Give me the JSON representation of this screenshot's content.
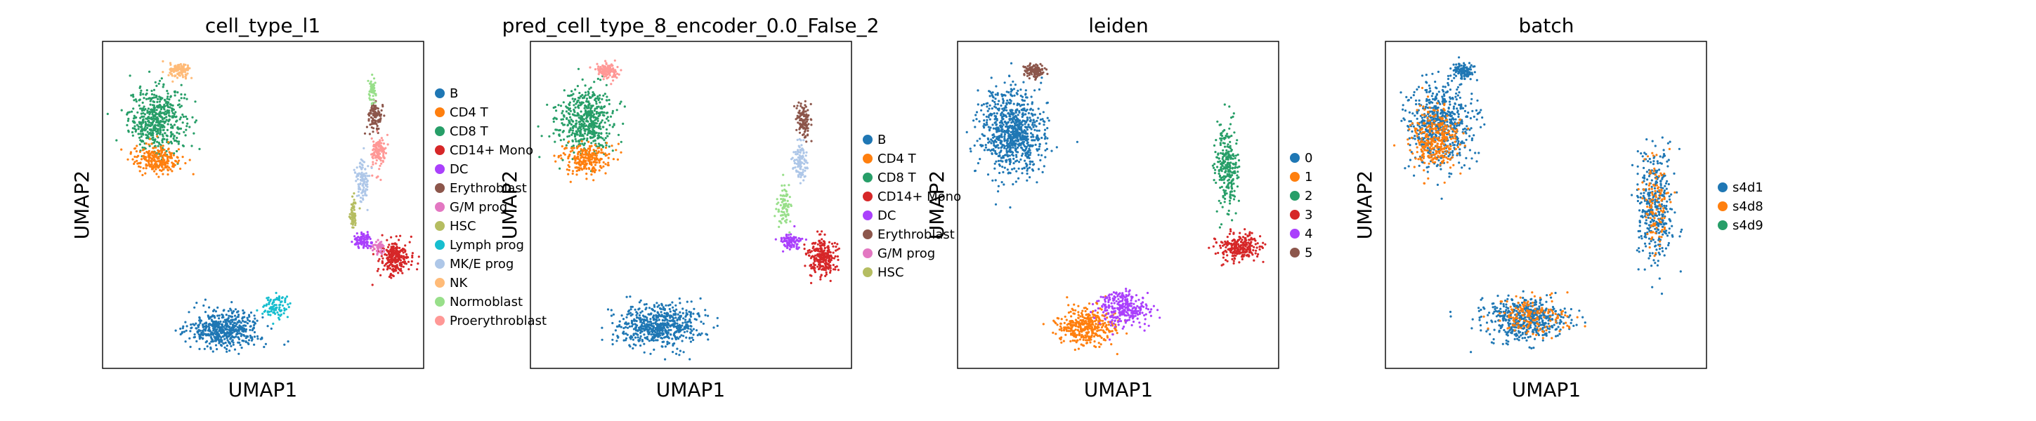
{
  "figure": {
    "panels": [
      {
        "title": "cell_type_l1",
        "xlabel": "UMAP1",
        "ylabel": "UMAP2",
        "legend": [
          {
            "label": "B",
            "color": "#1f77b4"
          },
          {
            "label": "CD4 T",
            "color": "#ff7f0e"
          },
          {
            "label": "CD8 T",
            "color": "#279e68"
          },
          {
            "label": "CD14+ Mono",
            "color": "#d62728"
          },
          {
            "label": "DC",
            "color": "#aa40fc"
          },
          {
            "label": "Erythroblast",
            "color": "#8c564b"
          },
          {
            "label": "G/M prog",
            "color": "#e377c2"
          },
          {
            "label": "HSC",
            "color": "#b5bd61"
          },
          {
            "label": "Lymph prog",
            "color": "#17becf"
          },
          {
            "label": "MK/E prog",
            "color": "#aec7e8"
          },
          {
            "label": "NK",
            "color": "#ffbb78"
          },
          {
            "label": "Normoblast",
            "color": "#98df8a"
          },
          {
            "label": "Proerythroblast",
            "color": "#ff9896"
          }
        ]
      },
      {
        "title": "pred_cell_type_8_encoder_0.0_False_2",
        "xlabel": "UMAP1",
        "ylabel": "UMAP2",
        "legend": [
          {
            "label": "B",
            "color": "#1f77b4"
          },
          {
            "label": "CD4 T",
            "color": "#ff7f0e"
          },
          {
            "label": "CD8 T",
            "color": "#279e68"
          },
          {
            "label": "CD14+ Mono",
            "color": "#d62728"
          },
          {
            "label": "DC",
            "color": "#aa40fc"
          },
          {
            "label": "Erythroblast",
            "color": "#8c564b"
          },
          {
            "label": "G/M prog",
            "color": "#e377c2"
          },
          {
            "label": "HSC",
            "color": "#b5bd61"
          }
        ]
      },
      {
        "title": "leiden",
        "xlabel": "UMAP1",
        "ylabel": "UMAP2",
        "legend": [
          {
            "label": "0",
            "color": "#1f77b4"
          },
          {
            "label": "1",
            "color": "#ff7f0e"
          },
          {
            "label": "2",
            "color": "#279e68"
          },
          {
            "label": "3",
            "color": "#d62728"
          },
          {
            "label": "4",
            "color": "#aa40fc"
          },
          {
            "label": "5",
            "color": "#8c564b"
          }
        ]
      },
      {
        "title": "batch",
        "xlabel": "UMAP1",
        "ylabel": "UMAP2",
        "legend": [
          {
            "label": "s4d1",
            "color": "#1f77b4"
          },
          {
            "label": "s4d8",
            "color": "#ff7f0e"
          },
          {
            "label": "s4d9",
            "color": "#279e68"
          }
        ]
      }
    ]
  },
  "chart_data": [
    {
      "type": "scatter",
      "title": "cell_type_l1",
      "xlabel": "UMAP1",
      "ylabel": "UMAP2",
      "grid": false,
      "legend_position": "right",
      "clusters": [
        {
          "category": "CD8 T",
          "color": "#279e68",
          "center": [
            0.17,
            0.76
          ],
          "spread": [
            0.08,
            0.09
          ],
          "n": 500
        },
        {
          "category": "CD4 T",
          "color": "#ff7f0e",
          "center": [
            0.17,
            0.64
          ],
          "spread": [
            0.07,
            0.04
          ],
          "n": 240
        },
        {
          "category": "NK",
          "color": "#ffbb78",
          "center": [
            0.24,
            0.91
          ],
          "spread": [
            0.03,
            0.02
          ],
          "n": 120
        },
        {
          "category": "B",
          "color": "#1f77b4",
          "center": [
            0.38,
            0.12
          ],
          "spread": [
            0.1,
            0.05
          ],
          "n": 520
        },
        {
          "category": "Lymph prog",
          "color": "#17becf",
          "center": [
            0.54,
            0.19
          ],
          "spread": [
            0.04,
            0.03
          ],
          "n": 90
        },
        {
          "category": "Erythroblast",
          "color": "#8c564b",
          "center": [
            0.85,
            0.77
          ],
          "spread": [
            0.02,
            0.04
          ],
          "n": 100
        },
        {
          "category": "Proerythroblast",
          "color": "#ff9896",
          "center": [
            0.86,
            0.66
          ],
          "spread": [
            0.02,
            0.05
          ],
          "n": 120
        },
        {
          "category": "MK/E prog",
          "color": "#aec7e8",
          "center": [
            0.81,
            0.58
          ],
          "spread": [
            0.02,
            0.06
          ],
          "n": 100
        },
        {
          "category": "Normoblast",
          "color": "#98df8a",
          "center": [
            0.84,
            0.85
          ],
          "spread": [
            0.01,
            0.03
          ],
          "n": 50
        },
        {
          "category": "HSC",
          "color": "#b5bd61",
          "center": [
            0.78,
            0.47
          ],
          "spread": [
            0.01,
            0.05
          ],
          "n": 60
        },
        {
          "category": "DC",
          "color": "#aa40fc",
          "center": [
            0.81,
            0.39
          ],
          "spread": [
            0.03,
            0.02
          ],
          "n": 90
        },
        {
          "category": "CD14+ Mono",
          "color": "#d62728",
          "center": [
            0.91,
            0.34
          ],
          "spread": [
            0.04,
            0.05
          ],
          "n": 260
        },
        {
          "category": "G/M prog",
          "color": "#e377c2",
          "center": [
            0.86,
            0.37
          ],
          "spread": [
            0.02,
            0.02
          ],
          "n": 40
        }
      ]
    },
    {
      "type": "scatter",
      "title": "pred_cell_type_8_encoder_0.0_False_2",
      "xlabel": "UMAP1",
      "ylabel": "UMAP2",
      "grid": false,
      "legend_position": "right",
      "clusters": [
        {
          "category": "CD8 T",
          "color": "#279e68",
          "center": [
            0.17,
            0.76
          ],
          "spread": [
            0.08,
            0.09
          ],
          "n": 500
        },
        {
          "category": "CD4 T",
          "color": "#ff7f0e",
          "center": [
            0.17,
            0.64
          ],
          "spread": [
            0.07,
            0.04
          ],
          "n": 240
        },
        {
          "category": "Proerythroblast",
          "color": "#ff9896",
          "center": [
            0.24,
            0.91
          ],
          "spread": [
            0.03,
            0.02
          ],
          "n": 120
        },
        {
          "category": "B",
          "color": "#1f77b4",
          "center": [
            0.4,
            0.13
          ],
          "spread": [
            0.12,
            0.06
          ],
          "n": 600
        },
        {
          "category": "Erythroblast",
          "color": "#8c564b",
          "center": [
            0.85,
            0.76
          ],
          "spread": [
            0.02,
            0.05
          ],
          "n": 120
        },
        {
          "category": "MK/E prog",
          "color": "#aec7e8",
          "center": [
            0.84,
            0.63
          ],
          "spread": [
            0.02,
            0.05
          ],
          "n": 100
        },
        {
          "category": "Normoblast",
          "color": "#98df8a",
          "center": [
            0.79,
            0.5
          ],
          "spread": [
            0.02,
            0.06
          ],
          "n": 80
        },
        {
          "category": "DC",
          "color": "#aa40fc",
          "center": [
            0.81,
            0.39
          ],
          "spread": [
            0.03,
            0.02
          ],
          "n": 90
        },
        {
          "category": "CD14+ Mono",
          "color": "#d62728",
          "center": [
            0.91,
            0.34
          ],
          "spread": [
            0.04,
            0.05
          ],
          "n": 260
        }
      ]
    },
    {
      "type": "scatter",
      "title": "leiden",
      "xlabel": "UMAP1",
      "ylabel": "UMAP2",
      "grid": false,
      "legend_position": "right",
      "clusters": [
        {
          "category": "0",
          "color": "#1f77b4",
          "center": [
            0.17,
            0.72
          ],
          "spread": [
            0.09,
            0.12
          ],
          "n": 800
        },
        {
          "category": "5",
          "color": "#8c564b",
          "center": [
            0.24,
            0.91
          ],
          "spread": [
            0.03,
            0.02
          ],
          "n": 120
        },
        {
          "category": "1",
          "color": "#ff7f0e",
          "center": [
            0.4,
            0.13
          ],
          "spread": [
            0.08,
            0.05
          ],
          "n": 380
        },
        {
          "category": "4",
          "color": "#aa40fc",
          "center": [
            0.52,
            0.18
          ],
          "spread": [
            0.07,
            0.05
          ],
          "n": 300
        },
        {
          "category": "2",
          "color": "#279e68",
          "center": [
            0.84,
            0.62
          ],
          "spread": [
            0.03,
            0.12
          ],
          "n": 260
        },
        {
          "category": "3",
          "color": "#d62728",
          "center": [
            0.88,
            0.37
          ],
          "spread": [
            0.06,
            0.04
          ],
          "n": 240
        }
      ]
    },
    {
      "type": "scatter",
      "title": "batch",
      "xlabel": "UMAP1",
      "ylabel": "UMAP2",
      "grid": false,
      "legend_position": "right",
      "clusters": [
        {
          "category": "s4d1",
          "color": "#1f77b4",
          "center": [
            0.17,
            0.74
          ],
          "spread": [
            0.09,
            0.12
          ],
          "n": 600
        },
        {
          "category": "s4d8",
          "color": "#ff7f0e",
          "center": [
            0.15,
            0.7
          ],
          "spread": [
            0.07,
            0.09
          ],
          "n": 320
        },
        {
          "category": "s4d1",
          "color": "#1f77b4",
          "center": [
            0.24,
            0.91
          ],
          "spread": [
            0.03,
            0.02
          ],
          "n": 120
        },
        {
          "category": "s4d1",
          "color": "#1f77b4",
          "center": [
            0.44,
            0.15
          ],
          "spread": [
            0.12,
            0.06
          ],
          "n": 500
        },
        {
          "category": "s4d8",
          "color": "#ff7f0e",
          "center": [
            0.46,
            0.16
          ],
          "spread": [
            0.1,
            0.05
          ],
          "n": 160
        },
        {
          "category": "s4d1",
          "color": "#1f77b4",
          "center": [
            0.84,
            0.5
          ],
          "spread": [
            0.05,
            0.16
          ],
          "n": 360
        },
        {
          "category": "s4d8",
          "color": "#ff7f0e",
          "center": [
            0.84,
            0.5
          ],
          "spread": [
            0.04,
            0.14
          ],
          "n": 110
        }
      ]
    }
  ]
}
